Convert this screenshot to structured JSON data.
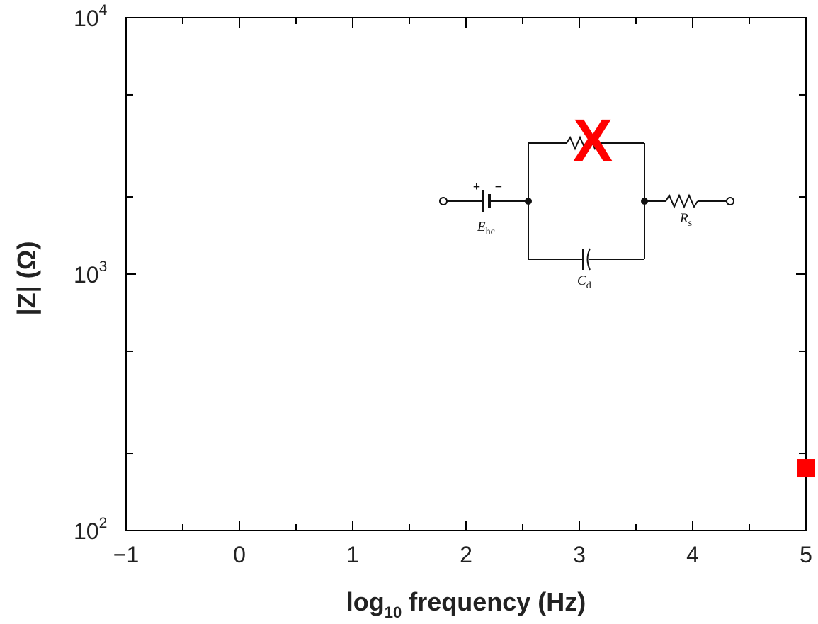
{
  "chart_data": {
    "type": "scatter",
    "xlabel_main": "log",
    "xlabel_sub": "10",
    "xlabel_rest": " frequency (Hz)",
    "ylabel": "|Z| (Ω)",
    "x_ticks": [
      "−1",
      "0",
      "1",
      "2",
      "3",
      "4",
      "5"
    ],
    "x_tick_values": [
      -1,
      0,
      1,
      2,
      3,
      4,
      5
    ],
    "y_ticks": [
      {
        "base": "10",
        "exp": "2",
        "value": 100
      },
      {
        "base": "10",
        "exp": "3",
        "value": 1000
      },
      {
        "base": "10",
        "exp": "4",
        "value": 10000
      }
    ],
    "xlim": [
      -1,
      5
    ],
    "ylim": [
      100,
      10000
    ],
    "y_scale": "log",
    "grid": false,
    "marker_color": "#ff0000",
    "series": [
      {
        "marker": "square",
        "points": [
          {
            "x": 5.0,
            "y": 175
          }
        ]
      }
    ]
  },
  "inset": {
    "type": "circuit-diagram",
    "labels": {
      "ehc_main": "E",
      "ehc_sub": "hc",
      "rs_main": "R",
      "rs_sub": "s",
      "cd_main": "C",
      "cd_sub": "d",
      "plus": "+",
      "minus": "−"
    },
    "overlay_mark": "X",
    "overlay_color": "#ff0000"
  }
}
